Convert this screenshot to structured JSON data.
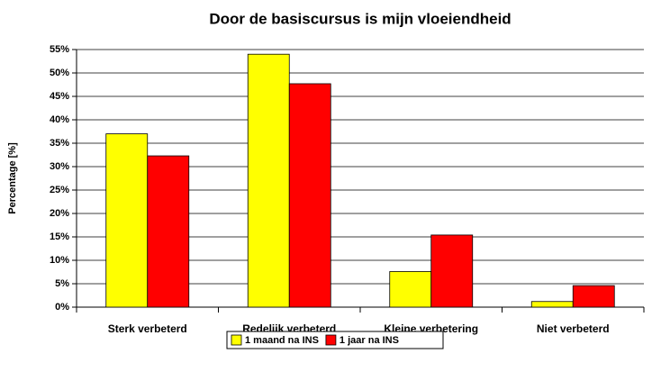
{
  "chart_data": {
    "type": "bar",
    "title": "Door de basiscursus is mijn vloeiendheid",
    "y_label": "Percentage [%]",
    "categories": [
      "Sterk verbeterd",
      "Redelijk verbeterd",
      "Kleine verbetering",
      "Niet verbeterd"
    ],
    "series": [
      {
        "name": "1 maand na INS",
        "color": "#ffff00",
        "values": [
          37,
          54,
          7.6,
          1.2
        ]
      },
      {
        "name": "1 jaar na INS",
        "color": "#ff0000",
        "values": [
          32.3,
          47.7,
          15.4,
          4.6
        ]
      }
    ],
    "ylim": [
      0,
      55
    ],
    "yticks": [
      {
        "value": 0,
        "label": "0%"
      },
      {
        "value": 5,
        "label": "5%"
      },
      {
        "value": 10,
        "label": "10%"
      },
      {
        "value": 15,
        "label": "15%"
      },
      {
        "value": 20,
        "label": "20%"
      },
      {
        "value": 25,
        "label": "25%"
      },
      {
        "value": 30,
        "label": "30%"
      },
      {
        "value": 35,
        "label": "35%"
      },
      {
        "value": 40,
        "label": "40%"
      },
      {
        "value": 45,
        "label": "45%"
      },
      {
        "value": 50,
        "label": "50%"
      },
      {
        "value": 55,
        "label": "55%"
      }
    ],
    "grid": true,
    "legend": "bottom"
  }
}
